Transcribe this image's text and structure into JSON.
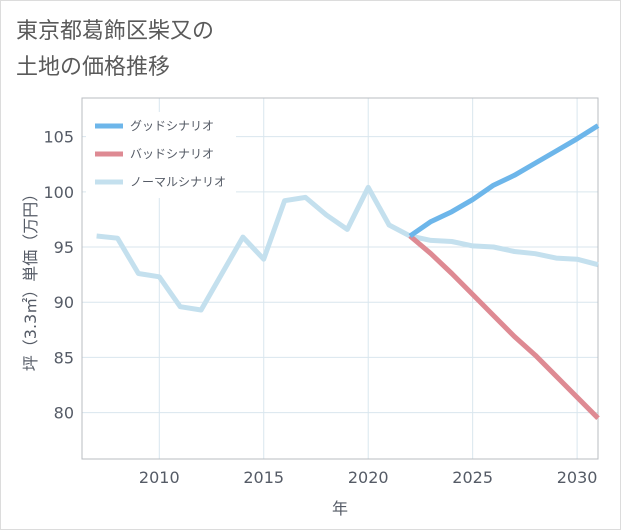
{
  "title": {
    "line1": "東京都葛飾区柴又の",
    "line2": "土地の価格推移"
  },
  "chart_data": {
    "type": "line",
    "xlabel": "年",
    "ylabel": "坪（3.3㎡）単価（万円）",
    "xlim": [
      2006.3,
      2031
    ],
    "ylim": [
      75.8,
      108.5
    ],
    "x_ticks": [
      2010,
      2015,
      2020,
      2025,
      2030
    ],
    "y_ticks": [
      80,
      85,
      90,
      95,
      100,
      105
    ],
    "legend_position": "top-left",
    "colors": {
      "good": "#6db6ea",
      "bad": "#de8a93",
      "normal": "#c4e0ee"
    },
    "series": [
      {
        "key": "good",
        "name": "グッドシナリオ",
        "x": [
          2022,
          2023,
          2024,
          2025,
          2026,
          2027,
          2028,
          2029,
          2030,
          2031
        ],
        "values": [
          96.0,
          97.3,
          98.2,
          99.3,
          100.6,
          101.5,
          102.6,
          103.7,
          104.8,
          106.0
        ]
      },
      {
        "key": "bad",
        "name": "バッドシナリオ",
        "x": [
          2022,
          2023,
          2024,
          2025,
          2026,
          2027,
          2028,
          2029,
          2030,
          2031
        ],
        "values": [
          96.0,
          94.4,
          92.6,
          90.7,
          88.8,
          86.9,
          85.2,
          83.3,
          81.4,
          79.5
        ]
      },
      {
        "key": "normal",
        "name": "ノーマルシナリオ",
        "x": [
          2007,
          2008,
          2009,
          2010,
          2011,
          2012,
          2013,
          2014,
          2015,
          2016,
          2017,
          2018,
          2019,
          2020,
          2021,
          2022,
          2023,
          2024,
          2025,
          2026,
          2027,
          2028,
          2029,
          2030,
          2031
        ],
        "values": [
          96.0,
          95.8,
          92.6,
          92.3,
          89.6,
          89.3,
          92.6,
          95.9,
          93.9,
          99.2,
          99.5,
          97.9,
          96.6,
          100.4,
          97.0,
          96.0,
          95.6,
          95.5,
          95.1,
          95.0,
          94.6,
          94.4,
          94.0,
          93.9,
          93.4
        ]
      }
    ]
  }
}
